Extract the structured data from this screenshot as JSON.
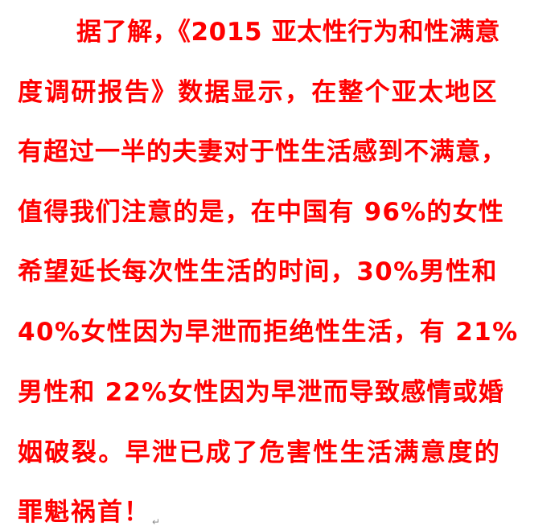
{
  "document": {
    "lines": [
      "据了解，《2015  亚太性行为和性满意",
      "度调研报告》数据显示，在整个亚太地区",
      "有超过一半的夫妻对于性生活感到不满意，",
      "值得我们注意的是，在中国有 96%的女性",
      "希望延长每次性生活的时间，30%男性和",
      "40%女性因为早泄而拒绝性生活，有 21%",
      "男性和 22%女性因为早泄而导致感情或婚",
      "姻破裂。早泄已成了危害性生活满意度的",
      "罪魁祸首！"
    ],
    "paragraph_mark": "↵",
    "text_color": "#ff0000"
  }
}
